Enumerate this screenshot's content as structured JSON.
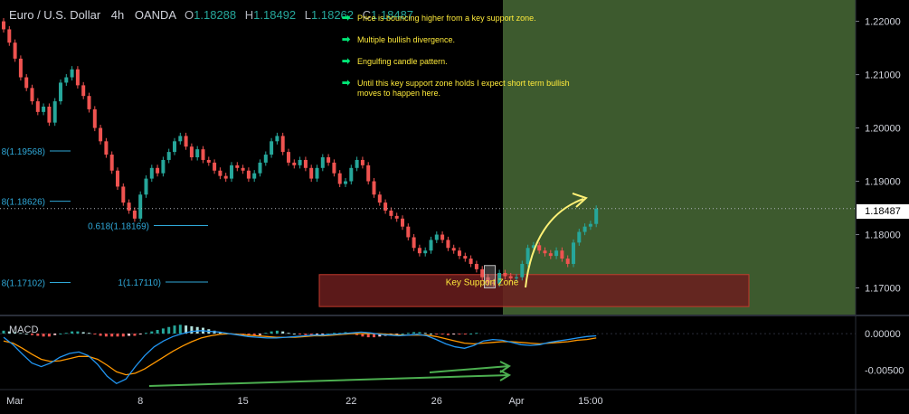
{
  "legend": {
    "symbol": "Euro / U.S. Dollar",
    "interval": "4h",
    "broker": "OANDA",
    "ohlc": [
      {
        "key": "O",
        "value": "1.18288"
      },
      {
        "key": "H",
        "value": "1.18492"
      },
      {
        "key": "L",
        "value": "1.18262"
      },
      {
        "key": "C",
        "value": "1.18487"
      }
    ]
  },
  "notes": [
    "Price is bouncing higher from a key support zone.",
    "Multiple bullish divergence.",
    "Engulfing candle pattern.",
    "Until this key support zone holds I expect short term bullish moves to happen here."
  ],
  "note_arrow": "➡",
  "zone_label": "Key Support Zone",
  "macd_label": "MACD",
  "last_price": "1.18487",
  "colors": {
    "bull": "#26a69a",
    "bear": "#ef5350",
    "target_zone": "#3d5a2e",
    "support_zone": "#6b1d1d",
    "fib": "#2fa8d8",
    "arrow": "#fff176",
    "divergence": "#4caf50",
    "macd_line": "#2196f3",
    "signal_line": "#ff9800"
  },
  "chart_data": {
    "type": "candlestick",
    "price_axis": {
      "min": 1.165,
      "max": 1.224,
      "ticks": [
        "1.22000",
        "1.21000",
        "1.20000",
        "1.19000",
        "1.18000",
        "1.17000"
      ],
      "tick_values": [
        1.22,
        1.21,
        1.2,
        1.19,
        1.18,
        1.17
      ]
    },
    "macd_axis": {
      "min": -0.0075,
      "max": 0.0021,
      "ticks": [
        "0.00000",
        "-0.00500"
      ],
      "tick_values": [
        0.0,
        -0.005
      ]
    },
    "time_axis": {
      "labels": [
        "Mar",
        "8",
        "15",
        "22",
        "26",
        "Apr",
        "15:00"
      ],
      "label_index": [
        2,
        24,
        42,
        61,
        76,
        90,
        103
      ]
    },
    "fib_levels": [
      {
        "label": "0.618(1.18169)",
        "value": 1.18169
      },
      {
        "label": "1(1.17110)",
        "value": 1.1711
      },
      {
        "label": "8(1.19568)",
        "value": 1.19568
      },
      {
        "label": "8(1.18626)",
        "value": 1.18626
      },
      {
        "label": "8(1.17102)",
        "value": 1.17102
      }
    ],
    "support_zone": {
      "low": 1.1665,
      "high": 1.1725
    },
    "last_close": 1.18487,
    "closes": [
      1.2185,
      1.216,
      1.213,
      1.2095,
      1.2075,
      1.205,
      1.203,
      1.204,
      1.201,
      1.205,
      1.2085,
      1.2095,
      1.211,
      1.208,
      1.206,
      1.2035,
      1.2,
      1.1975,
      1.195,
      1.192,
      1.189,
      1.186,
      1.1845,
      1.183,
      1.1875,
      1.1905,
      1.1925,
      1.1915,
      1.194,
      1.1955,
      1.1975,
      1.1985,
      1.1965,
      1.1945,
      1.196,
      1.194,
      1.1935,
      1.192,
      1.191,
      1.1905,
      1.193,
      1.1925,
      1.192,
      1.1905,
      1.1915,
      1.1935,
      1.195,
      1.1975,
      1.1985,
      1.1955,
      1.1935,
      1.193,
      1.194,
      1.1925,
      1.1905,
      1.1925,
      1.1945,
      1.1935,
      1.1915,
      1.1895,
      1.19,
      1.1925,
      1.194,
      1.193,
      1.19,
      1.1875,
      1.186,
      1.1845,
      1.1835,
      1.183,
      1.1815,
      1.1795,
      1.1775,
      1.1765,
      1.177,
      1.179,
      1.18,
      1.179,
      1.1775,
      1.177,
      1.176,
      1.1755,
      1.1745,
      1.1735,
      1.172,
      1.171,
      1.1708,
      1.1728,
      1.1722,
      1.1718,
      1.172,
      1.1745,
      1.1775,
      1.178,
      1.177,
      1.1765,
      1.176,
      1.177,
      1.1755,
      1.1745,
      1.1785,
      1.1805,
      1.1815,
      1.182,
      1.18487
    ],
    "macd_hist": [
      0.0004,
      0.0003,
      0.0002,
      0.0001,
      0.0,
      -0.0002,
      -0.0003,
      -0.0004,
      -0.0004,
      -0.0002,
      0.0,
      0.0001,
      0.0003,
      0.0003,
      0.0002,
      0.0001,
      -0.0001,
      -0.0003,
      -0.0004,
      -0.0004,
      -0.0004,
      -0.0004,
      -0.0003,
      -0.0003,
      -0.0001,
      0.0001,
      0.0003,
      0.0005,
      0.0007,
      0.0009,
      0.0011,
      0.0012,
      0.0011,
      0.001,
      0.0009,
      0.0008,
      0.0006,
      0.0004,
      0.0002,
      0.0,
      -0.0001,
      -0.0002,
      -0.0002,
      -0.0003,
      -0.0003,
      -0.0002,
      0.0001,
      0.0003,
      0.0004,
      0.0003,
      0.0001,
      0.0,
      -0.0001,
      -0.0002,
      -0.0003,
      -0.0002,
      -0.0001,
      0.0,
      0.0001,
      0.0001,
      0.0002,
      0.0001,
      -0.0002,
      -0.0004,
      -0.0005,
      -0.0005,
      -0.0004,
      -0.0003,
      -0.0002,
      -0.0001,
      0.0,
      0.0001,
      0.0002,
      0.0002,
      0.0001,
      0.0,
      -0.0001,
      -0.0001,
      -0.0002,
      -0.0001,
      -0.0001,
      -0.0001,
      0.0,
      0.0001
    ],
    "macd_line": [
      -0.0005,
      -0.0015,
      -0.0028,
      -0.004,
      -0.0045,
      -0.004,
      -0.0032,
      -0.0027,
      -0.0025,
      -0.003,
      -0.0042,
      -0.0058,
      -0.0068,
      -0.0062,
      -0.0045,
      -0.003,
      -0.0018,
      -0.001,
      -0.0004,
      0.0,
      0.0003,
      0.0004,
      0.0003,
      0.0002,
      0.0,
      -0.0002,
      -0.0004,
      -0.0005,
      -0.0006,
      -0.0006,
      -0.0005,
      -0.0004,
      -0.0003,
      -0.0002,
      -0.0002,
      -0.0001,
      0.0,
      0.0001,
      0.0002,
      0.0001,
      -0.0001,
      -0.0002,
      -0.0003,
      -0.0002,
      -0.0001,
      -0.0003,
      -0.0008,
      -0.0014,
      -0.0018,
      -0.002,
      -0.0016,
      -0.001,
      -0.0008,
      -0.0009,
      -0.0012,
      -0.0015,
      -0.0016,
      -0.0015,
      -0.0012,
      -0.001,
      -0.0008,
      -0.0006,
      -0.0004,
      -0.0003
    ],
    "signal_line": [
      -0.001,
      -0.0013,
      -0.002,
      -0.0028,
      -0.0035,
      -0.0038,
      -0.0037,
      -0.0034,
      -0.0031,
      -0.0031,
      -0.0035,
      -0.0043,
      -0.0052,
      -0.0056,
      -0.0054,
      -0.0048,
      -0.004,
      -0.0032,
      -0.0024,
      -0.0017,
      -0.0011,
      -0.0006,
      -0.0003,
      -0.0001,
      0.0,
      -0.0001,
      -0.0002,
      -0.0003,
      -0.0004,
      -0.0005,
      -0.0005,
      -0.0005,
      -0.0004,
      -0.0003,
      -0.0003,
      -0.0002,
      -0.0001,
      0.0,
      0.0,
      0.0,
      0.0,
      -0.0001,
      -0.0002,
      -0.0002,
      -0.0002,
      -0.0002,
      -0.0004,
      -0.0007,
      -0.001,
      -0.0013,
      -0.0014,
      -0.0013,
      -0.0012,
      -0.0011,
      -0.0011,
      -0.0012,
      -0.0013,
      -0.0014,
      -0.0013,
      -0.0012,
      -0.0011,
      -0.0009,
      -0.0008,
      -0.0006
    ]
  }
}
